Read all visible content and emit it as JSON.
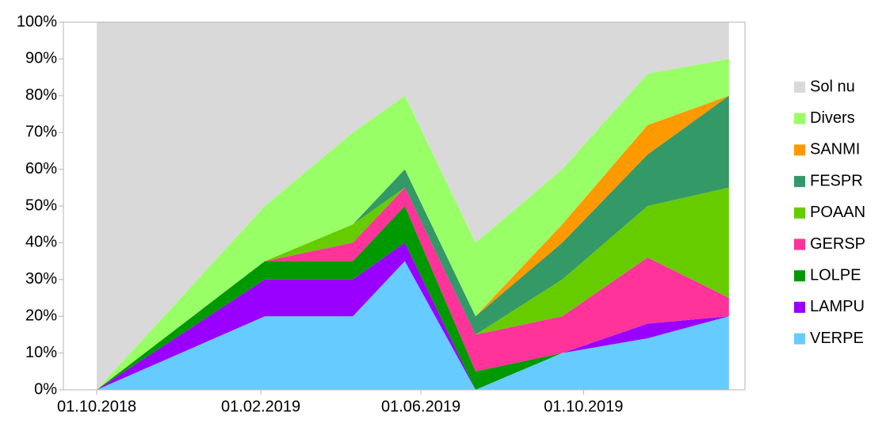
{
  "chart_data": {
    "type": "stacked_area",
    "x": [
      "01.10.2018",
      "04.02.2019",
      "11.04.2019",
      "20.05.2019",
      "12.07.2019",
      "15.09.2019",
      "18.11.2019",
      "18.01.2020"
    ],
    "xlim": [
      "06.09.2018",
      "30.01.2020"
    ],
    "xticks": [
      "01.10.2018",
      "01.02.2019",
      "01.06.2019",
      "01.10.2019"
    ],
    "ylim": [
      0,
      100
    ],
    "yticks": [
      {
        "value": 0,
        "label": "0%"
      },
      {
        "value": 10,
        "label": "10%"
      },
      {
        "value": 20,
        "label": "20%"
      },
      {
        "value": 30,
        "label": "30%"
      },
      {
        "value": 40,
        "label": "40%"
      },
      {
        "value": 50,
        "label": "50%"
      },
      {
        "value": 60,
        "label": "60%"
      },
      {
        "value": 70,
        "label": "70%"
      },
      {
        "value": 80,
        "label": "80%"
      },
      {
        "value": 90,
        "label": "90%"
      },
      {
        "value": 100,
        "label": "100%"
      }
    ],
    "legend": "right",
    "series": [
      {
        "name": "VERPE",
        "color": "#66ccff",
        "values": [
          0,
          20,
          20,
          35,
          0,
          10,
          14,
          20
        ]
      },
      {
        "name": "LAMPU",
        "color": "#9900ff",
        "values": [
          0,
          10,
          10,
          5,
          0,
          0,
          4,
          0
        ]
      },
      {
        "name": "LOLPE",
        "color": "#009900",
        "values": [
          0,
          5,
          5,
          10,
          5,
          0,
          0,
          0
        ]
      },
      {
        "name": "GERSP",
        "color": "#ff3399",
        "values": [
          0,
          0,
          5,
          5,
          10,
          10,
          18,
          5
        ]
      },
      {
        "name": "POAAN",
        "color": "#66cc00",
        "values": [
          0,
          0,
          5,
          0,
          0,
          10,
          14,
          30
        ]
      },
      {
        "name": "FESPR",
        "color": "#339966",
        "values": [
          0,
          0,
          0,
          5,
          5,
          10,
          14,
          25
        ]
      },
      {
        "name": "SANMI",
        "color": "#ff9900",
        "values": [
          0,
          0,
          0,
          0,
          0,
          5,
          8,
          0
        ]
      },
      {
        "name": "Divers",
        "color": "#99ff66",
        "values": [
          0,
          15,
          25,
          20,
          20,
          15,
          14,
          10
        ]
      },
      {
        "name": "Sol nu",
        "color": "#d9d9d9",
        "values": [
          100,
          50,
          30,
          20,
          60,
          40,
          14,
          10
        ]
      }
    ]
  }
}
